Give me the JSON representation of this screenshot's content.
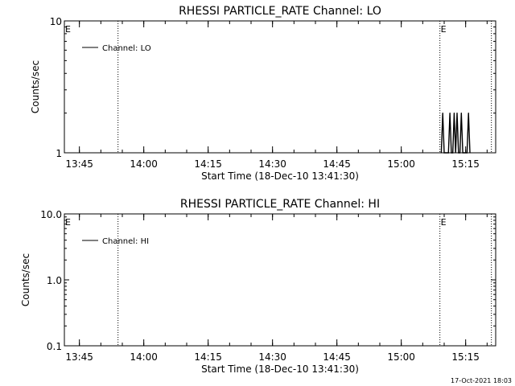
{
  "footer_timestamp": "17-Oct-2021 18:03",
  "chart_data": [
    {
      "type": "line",
      "title": "RHESSI PARTICLE_RATE Channel: LO",
      "xlabel": "Start Time (18-Dec-10 13:41:30)",
      "ylabel": "Counts/sec",
      "x_ticks": [
        "13:45",
        "14:00",
        "14:15",
        "14:30",
        "14:45",
        "15:00",
        "15:15"
      ],
      "xlim": [
        "13:41:30",
        "15:22:00"
      ],
      "ylim": [
        1,
        10
      ],
      "y_scale": "log",
      "y_ticks": [
        "1",
        "10"
      ],
      "legend": [
        "Channel: LO"
      ],
      "legend_position": "top-left",
      "event_markers": [
        {
          "label": "E",
          "time": "13:41:30",
          "line": false
        },
        {
          "label": "",
          "time": "13:54:00",
          "line": true
        },
        {
          "label": "E",
          "time": "15:09:00",
          "line": true
        },
        {
          "label": "",
          "time": "15:21:00",
          "line": true
        }
      ],
      "series": [
        {
          "name": "Channel: LO",
          "x": [
            "15:09:20",
            "15:09:40",
            "15:10:00",
            "15:10:20",
            "15:10:40",
            "15:11:00",
            "15:11:20",
            "15:11:40",
            "15:12:00",
            "15:12:20",
            "15:12:40",
            "15:13:00",
            "15:13:20",
            "15:13:40",
            "15:14:00",
            "15:14:20",
            "15:14:40",
            "15:15:00",
            "15:15:20",
            "15:15:40",
            "15:16:00"
          ],
          "values": [
            1,
            2,
            1,
            1,
            1,
            1,
            2,
            1,
            1,
            2,
            1,
            2,
            1,
            1,
            2,
            1,
            1,
            1,
            1,
            2,
            1
          ]
        }
      ]
    },
    {
      "type": "line",
      "title": "RHESSI PARTICLE_RATE Channel: HI",
      "xlabel": "Start Time (18-Dec-10 13:41:30)",
      "ylabel": "Counts/sec",
      "x_ticks": [
        "13:45",
        "14:00",
        "14:15",
        "14:30",
        "14:45",
        "15:00",
        "15:15"
      ],
      "xlim": [
        "13:41:30",
        "15:22:00"
      ],
      "ylim": [
        0.1,
        10
      ],
      "y_scale": "log",
      "y_ticks": [
        "0.1",
        "1.0",
        "10.0"
      ],
      "legend": [
        "Channel: HI"
      ],
      "legend_position": "top-left",
      "event_markers": [
        {
          "label": "E",
          "time": "13:41:30",
          "line": false
        },
        {
          "label": "",
          "time": "13:54:00",
          "line": true
        },
        {
          "label": "E",
          "time": "15:09:00",
          "line": true
        },
        {
          "label": "",
          "time": "15:21:00",
          "line": true
        }
      ],
      "series": [
        {
          "name": "Channel: HI",
          "x": [],
          "values": []
        }
      ]
    }
  ]
}
